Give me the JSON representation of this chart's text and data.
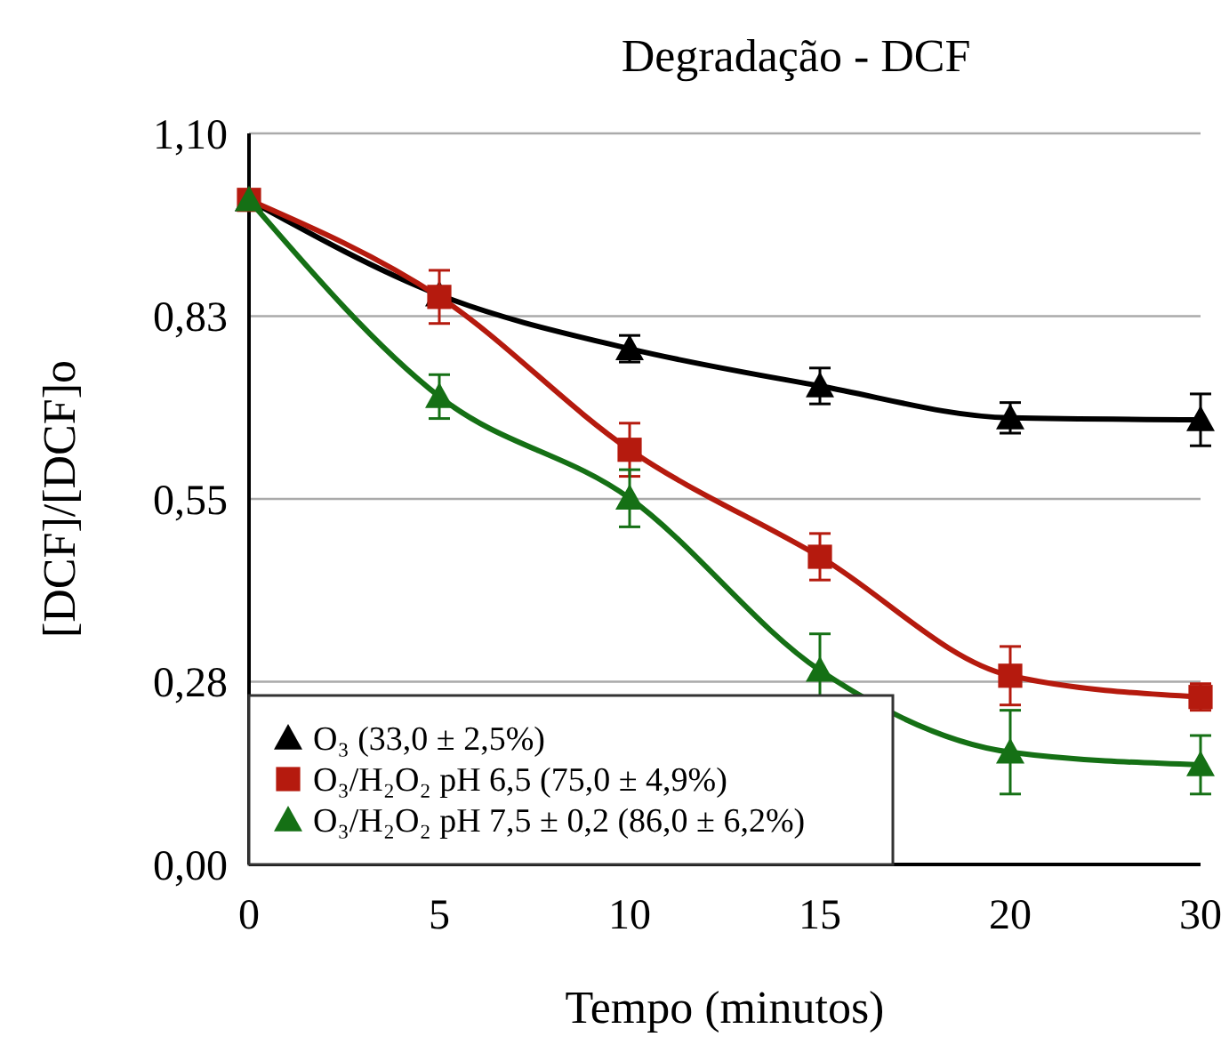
{
  "chart_data": {
    "type": "line",
    "title": "Degradação - DCF",
    "xlabel": "Tempo (minutos)",
    "ylabel": "[DCF]/[DCF]o",
    "categories": [
      "0",
      "5",
      "10",
      "15",
      "20",
      "30"
    ],
    "ylim": [
      0,
      1.1
    ],
    "yticks": [
      {
        "value": 0,
        "label": "0,00"
      },
      {
        "value": 0.275,
        "label": "0,28"
      },
      {
        "value": 0.55,
        "label": "0,55"
      },
      {
        "value": 0.825,
        "label": "0,83"
      },
      {
        "value": 1.1,
        "label": "1,10"
      }
    ],
    "grid": "y",
    "legend": "bottom left",
    "line_style": "solid",
    "series": [
      {
        "name": "O₃ (33,0 ± 2,5%)",
        "color": "#000000",
        "marker": "triangle",
        "values": [
          1.0,
          0.857,
          0.776,
          0.72,
          0.672,
          0.669
        ],
        "errors": [
          null,
          null,
          0.02,
          0.027,
          0.023,
          0.039
        ]
      },
      {
        "name": "O₃/H₂O₂ pH 6,5 (75,0 ± 4,9%)",
        "color": "#b51a0e",
        "marker": "square",
        "values": [
          1.0,
          0.854,
          0.624,
          0.463,
          0.284,
          0.252
        ],
        "errors": [
          null,
          0.04,
          0.04,
          0.035,
          0.044,
          0.02
        ]
      },
      {
        "name": "O₃/H₂O₂ pH 7,5 ± 0,2 (86,0 ± 6,2%)",
        "color": "#157015",
        "marker": "triangle",
        "values": [
          1.0,
          0.704,
          0.551,
          0.292,
          0.169,
          0.15
        ],
        "errors": [
          null,
          0.033,
          0.043,
          0.055,
          0.063,
          0.044
        ]
      }
    ]
  }
}
